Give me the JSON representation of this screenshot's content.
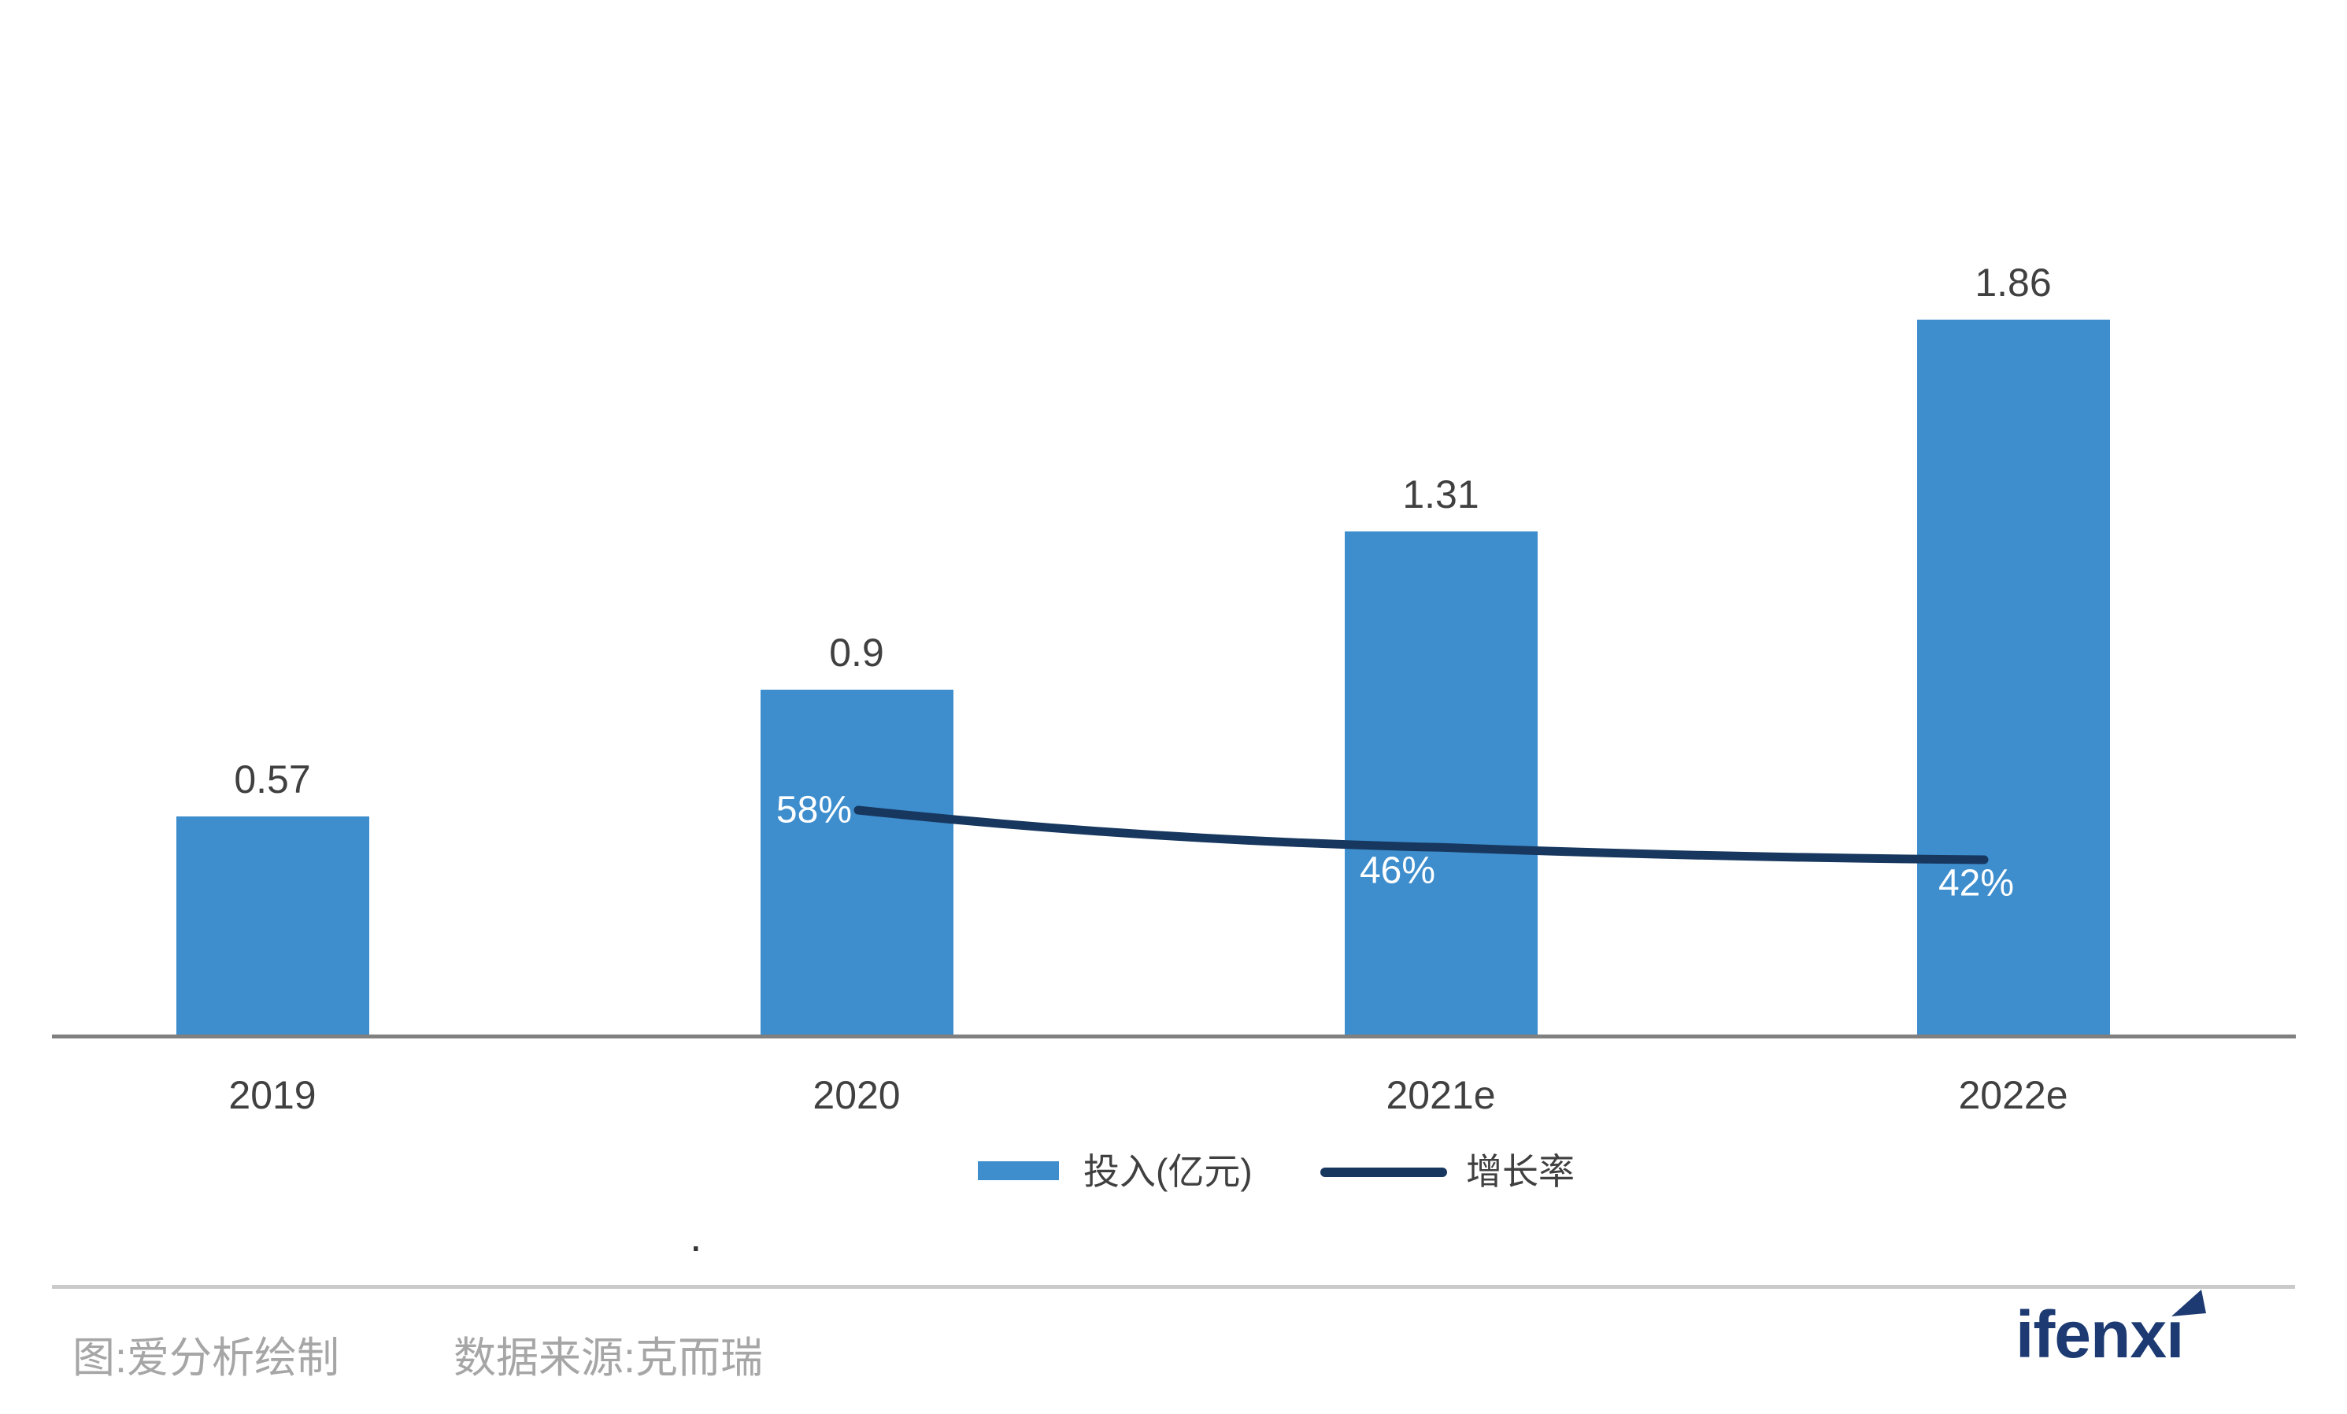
{
  "page": {
    "background": "#ffffff"
  },
  "chart_data": {
    "type": "bar",
    "subtype": "bar-line-combo",
    "title": "",
    "xlabel": "",
    "ylabel": "",
    "categories": [
      "2019",
      "2020",
      "2021e",
      "2022e"
    ],
    "series": [
      {
        "name": "投入(亿元)",
        "type": "bar",
        "values": [
          0.57,
          0.9,
          1.31,
          1.86
        ],
        "data_labels": [
          "0.57",
          "0.9",
          "1.31",
          "1.86"
        ],
        "color": "#3e8ece",
        "label_color": "#404040"
      },
      {
        "name": "增长率",
        "type": "line",
        "values": [
          null,
          0.58,
          0.46,
          0.42
        ],
        "data_labels": [
          null,
          "58%",
          "46%",
          "42%"
        ],
        "color": "#17375e",
        "label_color": "#ffffff"
      }
    ],
    "value_axis_visible": false,
    "percent_axis_visible": false,
    "gridlines": false,
    "baseline_color": "#808080",
    "legend_position": "bottom-center"
  },
  "legend": {
    "items": [
      {
        "label": "投入(亿元)",
        "swatch": "bar",
        "color": "#3e8ece"
      },
      {
        "label": "增长率",
        "swatch": "line",
        "color": "#17375e"
      }
    ]
  },
  "annotations": {
    "stray_dot": "."
  },
  "footer": {
    "credit": "图:爱分析绘制",
    "source": "数据来源:克而瑞",
    "logo_text": "ifenxi",
    "divider_color": "#cacaca",
    "text_color": "#a6a6a6",
    "logo_color": "#1d3b72"
  }
}
